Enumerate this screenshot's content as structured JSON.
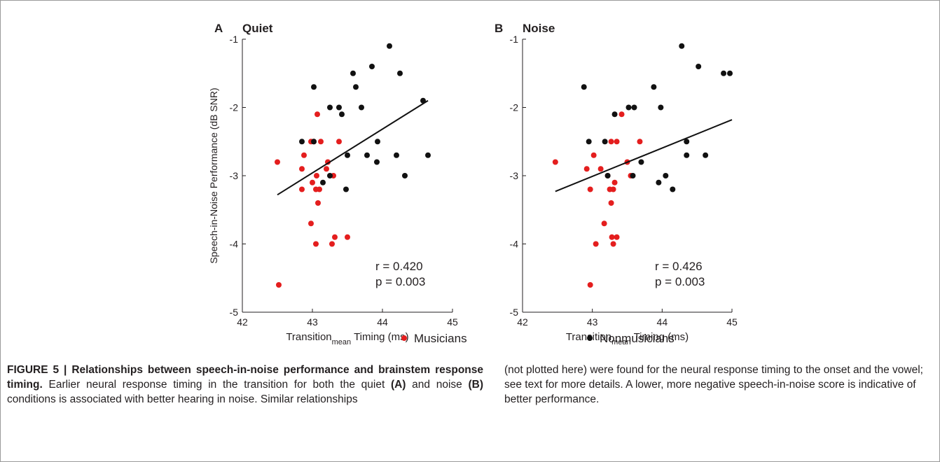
{
  "chart_data": [
    {
      "type": "scatter",
      "panel_letter": "A",
      "title": "Quiet",
      "xlabel_main": "Transition",
      "xlabel_sub": "mean",
      "xlabel_rest": " Timing (ms)",
      "ylabel": "Speech-in-Noise Performance (dB SNR)",
      "xlim": [
        42,
        45
      ],
      "ylim": [
        -5,
        -1
      ],
      "xticks": [
        42,
        43,
        44,
        45
      ],
      "yticks": [
        -5,
        -4,
        -3,
        -2,
        -1
      ],
      "grid": false,
      "series": [
        {
          "name": "Musicians",
          "color": "#e41e1e",
          "points": [
            [
              42.5,
              -2.8
            ],
            [
              42.52,
              -4.6
            ],
            [
              42.85,
              -2.9
            ],
            [
              42.88,
              -2.7
            ],
            [
              42.85,
              -3.2
            ],
            [
              42.98,
              -2.5
            ],
            [
              43.0,
              -3.1
            ],
            [
              42.98,
              -3.7
            ],
            [
              43.02,
              -2.5
            ],
            [
              43.05,
              -3.2
            ],
            [
              43.06,
              -3.0
            ],
            [
              43.07,
              -2.1
            ],
            [
              43.08,
              -3.4
            ],
            [
              43.1,
              -3.2
            ],
            [
              43.12,
              -2.5
            ],
            [
              43.05,
              -4.0
            ],
            [
              43.2,
              -2.9
            ],
            [
              43.22,
              -2.8
            ],
            [
              43.28,
              -4.0
            ],
            [
              43.3,
              -3.0
            ],
            [
              43.32,
              -3.9
            ],
            [
              43.38,
              -2.5
            ],
            [
              43.5,
              -3.9
            ]
          ]
        },
        {
          "name": "Nonmusicians",
          "color": "#111111",
          "points": [
            [
              42.85,
              -2.5
            ],
            [
              43.02,
              -1.7
            ],
            [
              43.02,
              -2.5
            ],
            [
              43.15,
              -3.1
            ],
            [
              43.25,
              -3.0
            ],
            [
              43.25,
              -2.0
            ],
            [
              43.38,
              -2.0
            ],
            [
              43.42,
              -2.1
            ],
            [
              43.48,
              -3.2
            ],
            [
              43.5,
              -2.7
            ],
            [
              43.58,
              -1.5
            ],
            [
              43.62,
              -1.7
            ],
            [
              43.7,
              -2.0
            ],
            [
              43.78,
              -2.7
            ],
            [
              43.85,
              -1.4
            ],
            [
              43.92,
              -2.8
            ],
            [
              43.93,
              -2.5
            ],
            [
              44.1,
              -1.1
            ],
            [
              44.2,
              -2.7
            ],
            [
              44.25,
              -1.5
            ],
            [
              44.32,
              -3.0
            ],
            [
              44.58,
              -1.9
            ],
            [
              44.65,
              -2.7
            ]
          ]
        }
      ],
      "fit_line": {
        "x": [
          42.5,
          44.65
        ],
        "y": [
          -3.28,
          -1.9
        ]
      },
      "annotation_r": "r  = 0.420",
      "annotation_p": "p = 0.003"
    },
    {
      "type": "scatter",
      "panel_letter": "B",
      "title": "Noise",
      "xlabel_main": "Transition",
      "xlabel_sub": "mean",
      "xlabel_rest": " Timing (ms)",
      "ylabel": "",
      "xlim": [
        42,
        45
      ],
      "ylim": [
        -5,
        -1
      ],
      "xticks": [
        42,
        43,
        44,
        45
      ],
      "yticks": [
        -5,
        -4,
        -3,
        -2,
        -1
      ],
      "grid": false,
      "series": [
        {
          "name": "Musicians",
          "color": "#e41e1e",
          "points": [
            [
              42.47,
              -2.8
            ],
            [
              42.92,
              -2.9
            ],
            [
              42.97,
              -3.2
            ],
            [
              42.97,
              -4.6
            ],
            [
              43.02,
              -2.7
            ],
            [
              43.05,
              -4.0
            ],
            [
              43.12,
              -2.9
            ],
            [
              43.17,
              -3.7
            ],
            [
              43.22,
              -3.0
            ],
            [
              43.25,
              -3.2
            ],
            [
              43.27,
              -3.4
            ],
            [
              43.27,
              -2.5
            ],
            [
              43.28,
              -3.9
            ],
            [
              43.3,
              -3.2
            ],
            [
              43.3,
              -4.0
            ],
            [
              43.32,
              -3.1
            ],
            [
              43.35,
              -3.9
            ],
            [
              43.35,
              -2.5
            ],
            [
              43.42,
              -2.1
            ],
            [
              43.5,
              -2.8
            ],
            [
              43.55,
              -3.0
            ],
            [
              43.68,
              -2.5
            ]
          ]
        },
        {
          "name": "Nonmusicians",
          "color": "#111111",
          "points": [
            [
              42.88,
              -1.7
            ],
            [
              42.95,
              -2.5
            ],
            [
              43.18,
              -2.5
            ],
            [
              43.22,
              -3.0
            ],
            [
              43.32,
              -2.1
            ],
            [
              43.52,
              -2.0
            ],
            [
              43.58,
              -3.0
            ],
            [
              43.6,
              -2.0
            ],
            [
              43.7,
              -2.8
            ],
            [
              43.88,
              -1.7
            ],
            [
              43.95,
              -3.1
            ],
            [
              43.98,
              -2.0
            ],
            [
              44.05,
              -3.0
            ],
            [
              44.15,
              -3.2
            ],
            [
              44.28,
              -1.1
            ],
            [
              44.35,
              -2.5
            ],
            [
              44.35,
              -2.7
            ],
            [
              44.52,
              -1.4
            ],
            [
              44.62,
              -2.7
            ],
            [
              44.88,
              -1.5
            ],
            [
              44.97,
              -1.5
            ]
          ]
        }
      ],
      "fit_line": {
        "x": [
          42.47,
          45.0
        ],
        "y": [
          -3.23,
          -2.18
        ]
      },
      "annotation_r": "r  = 0.426",
      "annotation_p": "p = 0.003"
    }
  ],
  "legend": {
    "placement": "bottom-center",
    "items": [
      {
        "label": "Musicians",
        "color": "#e41e1e"
      },
      {
        "label": "Nonmusicians",
        "color": "#111111"
      }
    ]
  },
  "caption": {
    "label": "FIGURE 5 | Relationships between speech-in-noise performance and brainstem response timing.",
    "text_1": " Earlier neural response timing in the transition for both the quiet ",
    "ref_a": "(A)",
    "text_2": " and noise ",
    "ref_b": "(B)",
    "text_3": " conditions is associated with better hearing in noise. Similar relationships",
    "text_right": "(not plotted here) were found for the neural response timing to the onset and the vowel; see text for more details. A lower, more negative speech-in-noise score is indicative of better performance."
  }
}
